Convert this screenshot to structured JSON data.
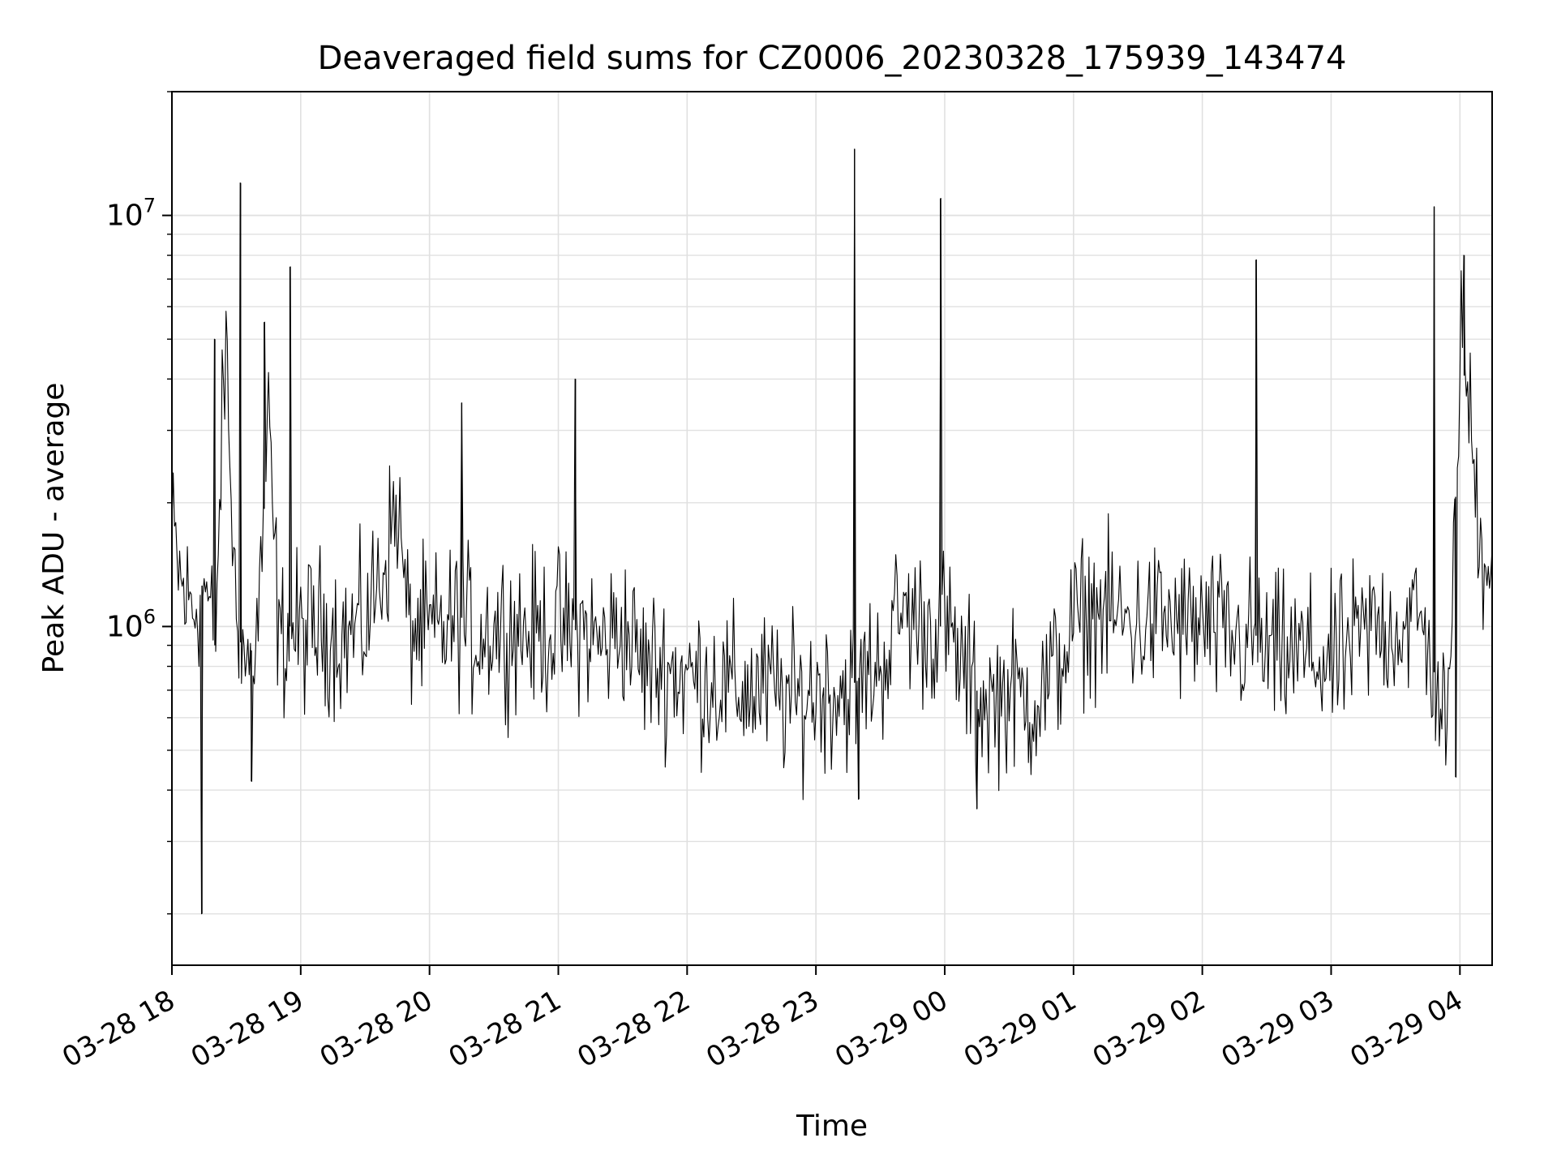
{
  "chart_data": {
    "type": "line",
    "title": "Deaveraged field sums for CZ0006_20230328_175939_143474",
    "xlabel": "Time",
    "ylabel": "Peak ADU - average",
    "y_scale": "log",
    "ylim": [
      150000,
      20000000
    ],
    "xlim": [
      "03-28 18:00",
      "03-29 04:15"
    ],
    "grid": true,
    "legend": "none",
    "x_ticks": [
      "03-28 18",
      "03-28 19",
      "03-28 20",
      "03-28 21",
      "03-28 22",
      "03-28 23",
      "03-29 00",
      "03-29 01",
      "03-29 02",
      "03-29 03",
      "03-29 04"
    ],
    "y_tick_labels": [
      {
        "value": 1000000,
        "base": "10",
        "exp": "6"
      },
      {
        "value": 10000000,
        "base": "10",
        "exp": "7"
      }
    ],
    "colors": {
      "line": "#000000",
      "grid": "#e0e0e0",
      "axes": "#000000"
    },
    "series": [
      {
        "x": [
          "03-28 18:00",
          "03-28 18:05",
          "03-28 18:10",
          "03-28 18:15",
          "03-28 18:20",
          "03-28 18:25",
          "03-28 18:30",
          "03-28 18:35",
          "03-28 18:40",
          "03-28 18:45",
          "03-28 18:50",
          "03-28 18:55",
          "03-28 19:00",
          "03-28 19:10",
          "03-28 19:20",
          "03-28 19:30",
          "03-28 19:40",
          "03-28 19:45",
          "03-28 19:50",
          "03-28 20:00",
          "03-28 20:10",
          "03-28 20:15",
          "03-28 20:20",
          "03-28 20:30",
          "03-28 20:40",
          "03-28 20:50",
          "03-28 21:00",
          "03-28 21:05",
          "03-28 21:10",
          "03-28 21:20",
          "03-28 21:30",
          "03-28 21:40",
          "03-28 21:50",
          "03-28 22:00",
          "03-28 22:10",
          "03-28 22:20",
          "03-28 22:30",
          "03-28 22:40",
          "03-28 22:50",
          "03-28 23:00",
          "03-28 23:10",
          "03-28 23:15",
          "03-28 23:20",
          "03-28 23:30",
          "03-28 23:40",
          "03-28 23:50",
          "03-28 23:55",
          "03-29 00:00",
          "03-29 00:10",
          "03-29 00:20",
          "03-29 00:30",
          "03-29 00:40",
          "03-29 00:50",
          "03-29 01:00",
          "03-29 01:10",
          "03-29 01:20",
          "03-29 01:30",
          "03-29 01:40",
          "03-29 01:50",
          "03-29 02:00",
          "03-29 02:10",
          "03-29 02:20",
          "03-29 02:25",
          "03-29 02:30",
          "03-29 02:40",
          "03-29 02:50",
          "03-29 03:00",
          "03-29 03:10",
          "03-29 03:20",
          "03-29 03:30",
          "03-29 03:40",
          "03-29 03:45",
          "03-29 03:50",
          "03-29 03:55",
          "03-29 04:00",
          "03-29 04:05",
          "03-29 04:10",
          "03-29 04:15"
        ],
        "values": [
          1700000,
          1200000,
          1100000,
          1300000,
          900000,
          5000000,
          1000000,
          800000,
          1000000,
          3000000,
          900000,
          1000000,
          950000,
          1000000,
          950000,
          1000000,
          1500000,
          2000000,
          1000000,
          950000,
          1000000,
          1050000,
          950000,
          1000000,
          1000000,
          950000,
          1000000,
          950000,
          1000000,
          900000,
          1000000,
          800000,
          800000,
          750000,
          750000,
          700000,
          700000,
          700000,
          650000,
          700000,
          700000,
          700000,
          750000,
          800000,
          1100000,
          1000000,
          1000000,
          1000000,
          750000,
          650000,
          700000,
          650000,
          750000,
          1000000,
          1100000,
          1050000,
          1000000,
          1050000,
          1000000,
          1000000,
          950000,
          900000,
          950000,
          850000,
          850000,
          850000,
          800000,
          900000,
          1000000,
          1000000,
          1050000,
          900000,
          700000,
          550000,
          5000000,
          3000000,
          1500000,
          1600000
        ]
      }
    ],
    "spikes": [
      {
        "x": "03-28 18:20",
        "value": 5000000
      },
      {
        "x": "03-28 18:32",
        "value": 12000000
      },
      {
        "x": "03-28 18:43",
        "value": 5500000
      },
      {
        "x": "03-28 18:55",
        "value": 7500000
      },
      {
        "x": "03-28 20:15",
        "value": 3500000
      },
      {
        "x": "03-28 21:08",
        "value": 4000000
      },
      {
        "x": "03-28 23:18",
        "value": 14500000
      },
      {
        "x": "03-28 23:58",
        "value": 11000000
      },
      {
        "x": "03-29 02:25",
        "value": 7800000
      },
      {
        "x": "03-29 03:48",
        "value": 10500000
      },
      {
        "x": "03-29 04:02",
        "value": 8000000
      }
    ],
    "dips": [
      {
        "x": "03-28 18:14",
        "value": 200000
      },
      {
        "x": "03-28 18:37",
        "value": 420000
      },
      {
        "x": "03-28 23:20",
        "value": 380000
      },
      {
        "x": "03-29 00:15",
        "value": 360000
      },
      {
        "x": "03-29 03:58",
        "value": 430000
      }
    ]
  }
}
